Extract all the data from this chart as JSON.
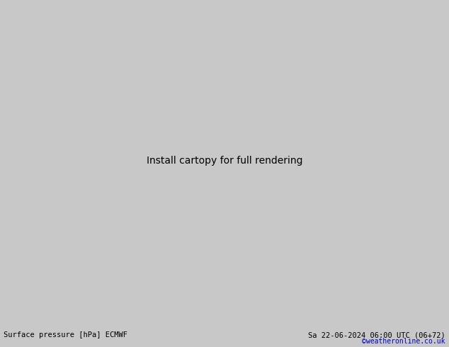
{
  "title_left": "Surface pressure [hPa] ECMWF",
  "title_right": "Sa 22-06-2024 06:00 UTC (06+72)",
  "credit": "©weatheronline.co.uk",
  "land_color": "#c8e8a0",
  "ocean_color": "#dcdcdc",
  "border_color": "#aaaaaa",
  "blue_color": "#0000cc",
  "red_color": "#cc0000",
  "black_color": "#000000",
  "title_fontsize": 7.5,
  "credit_fontsize": 7,
  "credit_color": "#0000cc",
  "label_fontsize": 5.5,
  "lon_min": 88,
  "lon_max": 170,
  "lat_min": -12,
  "lat_max": 53
}
